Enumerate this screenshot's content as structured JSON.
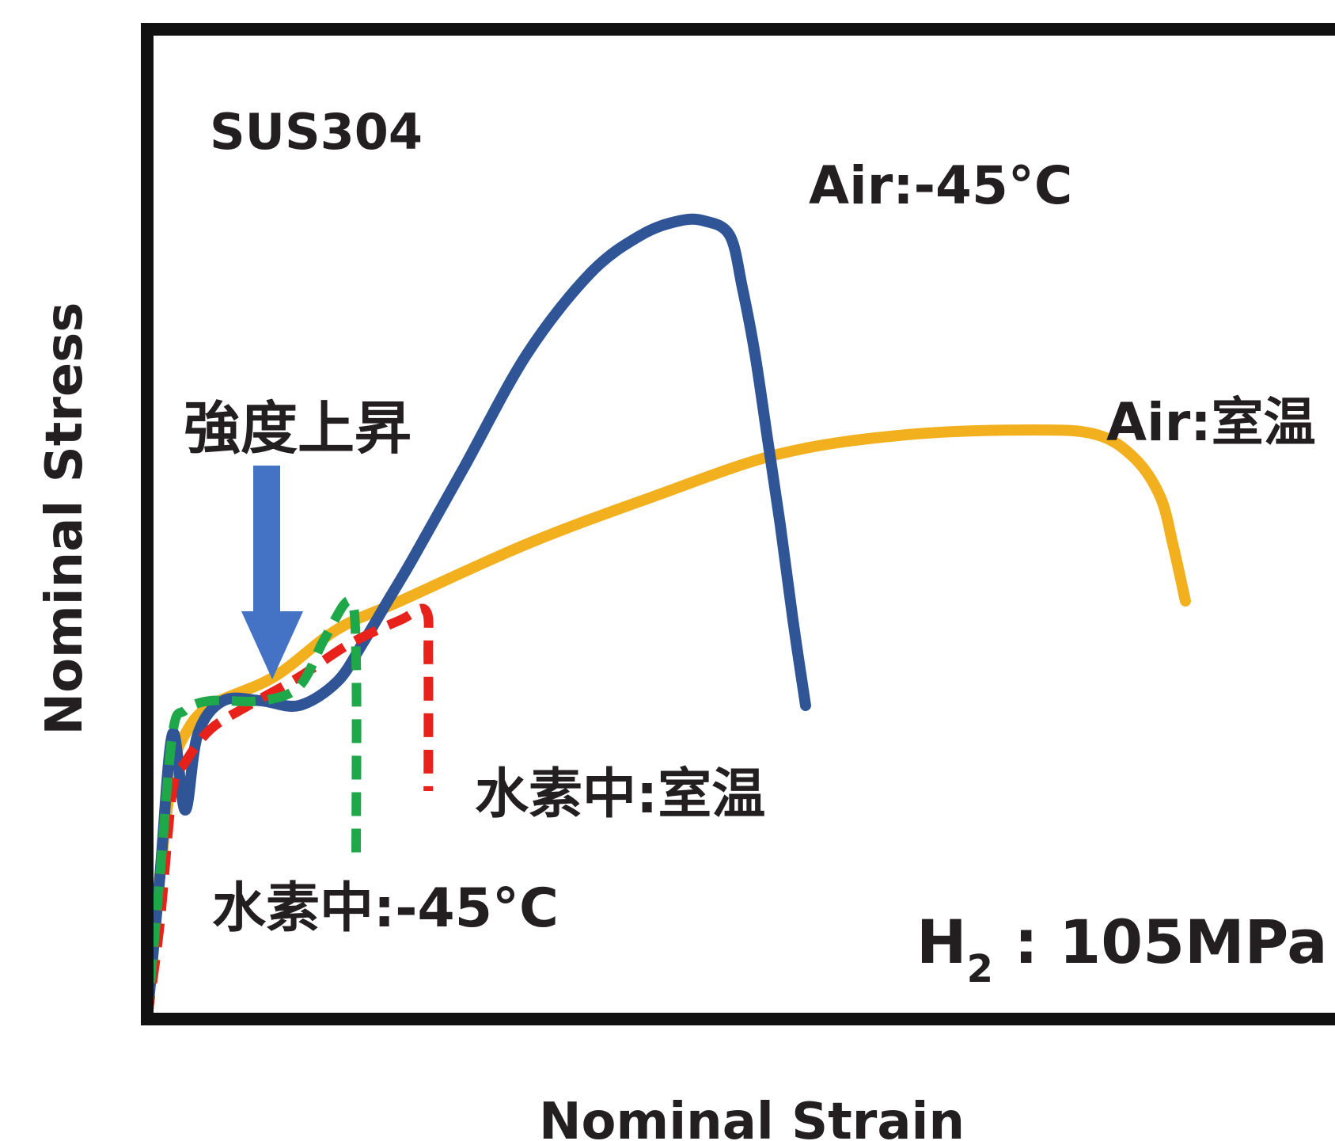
{
  "chart_data": {
    "type": "line",
    "xlabel": "Nominal Strain",
    "ylabel": "Nominal Stress",
    "xlim": [
      0,
      100
    ],
    "ylim": [
      0,
      100
    ],
    "grid": false,
    "ticks": false,
    "annotations": {
      "material": "SUS304",
      "strength_note": "強度上昇",
      "pressure_prefix": "H",
      "pressure_subscript": "2",
      "pressure_value": " : 105MPa"
    },
    "series": [
      {
        "name": "Air:-45°C",
        "color": "#2f5597",
        "dash": "solid",
        "x": [
          0,
          1,
          2,
          3,
          4,
          6,
          9,
          12,
          15,
          17,
          19,
          21,
          25,
          30,
          35,
          39,
          42,
          44,
          46,
          47,
          48,
          49,
          50,
          51,
          52
        ],
        "y": [
          0,
          15,
          30,
          22,
          30,
          33.5,
          33.5,
          33,
          35.5,
          39.5,
          44,
          48.5,
          58,
          70,
          78.5,
          82.5,
          84,
          84,
          82.5,
          77,
          70,
          61,
          52,
          42,
          33
        ]
      },
      {
        "name": "Air:室温",
        "color": "#f2b01e",
        "dash": "solid",
        "x": [
          0,
          1,
          2,
          3,
          5,
          10,
          15,
          20,
          30,
          40,
          50,
          60,
          70,
          75,
          78,
          80,
          81,
          82
        ],
        "y": [
          0,
          15,
          26,
          30,
          33,
          36,
          41,
          44,
          50,
          55,
          59.5,
          61.5,
          62,
          61.5,
          59,
          55,
          50,
          44
        ]
      },
      {
        "name": "水素中:室温",
        "color": "#e8221b",
        "dash": "dashed",
        "x": [
          0,
          1,
          2,
          3,
          5,
          8,
          12,
          16,
          20,
          22,
          22.2,
          22.2
        ],
        "y": [
          0,
          10,
          24,
          27,
          30.5,
          33,
          36,
          39.5,
          42,
          43,
          38,
          24
        ]
      },
      {
        "name": "水素中:-45°C",
        "color": "#1fa84a",
        "dash": "dashed",
        "x": [
          0,
          1,
          2,
          3,
          5,
          9,
          12,
          14,
          16,
          16.5,
          16.5
        ],
        "y": [
          0,
          15,
          30,
          32.5,
          33.5,
          33.5,
          35,
          40,
          44,
          38,
          17
        ]
      }
    ]
  }
}
